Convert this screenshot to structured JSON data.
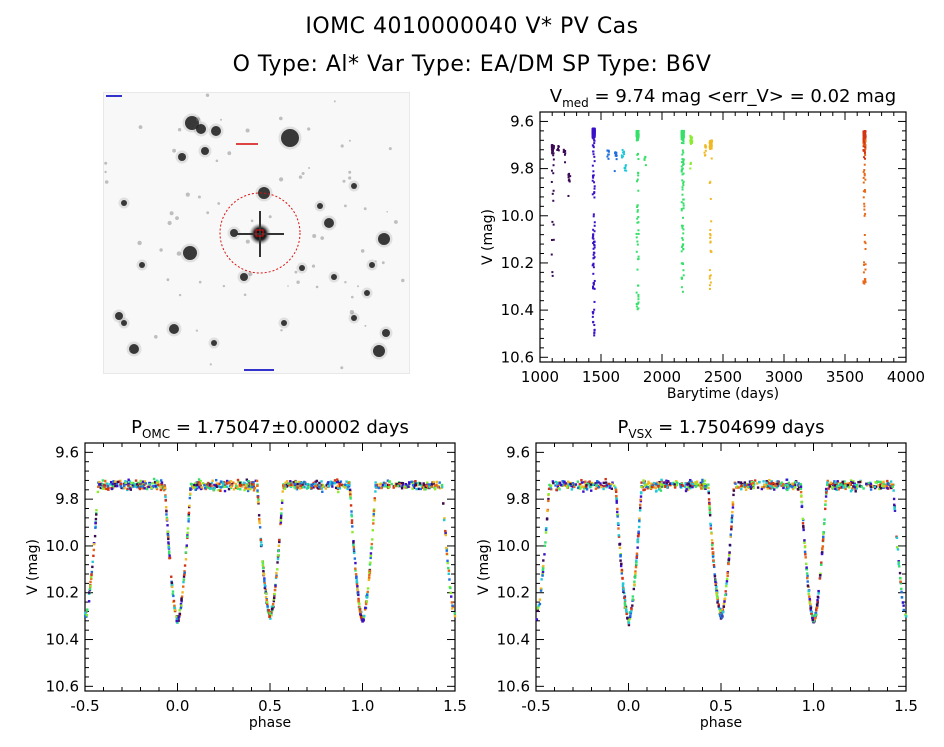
{
  "header": {
    "title_line1": "IOMC 4010000040    V* PV Cas",
    "title_line2": "O Type: Al*   Var Type: EA/DM   SP Type: B6V"
  },
  "chart_data": [
    {
      "id": "lightcurve",
      "type": "scatter",
      "title_main": "V",
      "title_sub": "med",
      "title_rest": " = 9.74 mag <err_V> = 0.02 mag",
      "xlabel": "Barytime (days)",
      "ylabel": "V (mag)",
      "xlim": [
        1000,
        4000
      ],
      "ylim": [
        10.62,
        9.56
      ],
      "xticks": [
        "1000",
        "1500",
        "2000",
        "2500",
        "3000",
        "3500",
        "4000"
      ],
      "yticks": [
        "9.6",
        "9.8",
        "10.0",
        "10.2",
        "10.4",
        "10.6"
      ],
      "series_colors": [
        "#3a0a55",
        "#3a10c8",
        "#1e6ee0",
        "#20c8d8",
        "#36e06a",
        "#8aec2c",
        "#f2b824",
        "#e86818",
        "#d23414"
      ]
    },
    {
      "id": "phase-omc",
      "type": "scatter",
      "title_main": "P",
      "title_sub": "OMC",
      "title_rest": " = 1.75047±0.00002 days",
      "xlabel": "phase",
      "ylabel": "V (mag)",
      "xlim": [
        -0.5,
        1.5
      ],
      "ylim": [
        10.62,
        9.56
      ],
      "xticks": [
        "-0.5",
        "0.0",
        "0.5",
        "1.0",
        "1.5"
      ],
      "yticks": [
        "9.6",
        "9.8",
        "10.0",
        "10.2",
        "10.4",
        "10.6"
      ],
      "baseline_mag": 9.74,
      "primary_depth": 10.32,
      "secondary_depth": 10.3
    },
    {
      "id": "phase-vsx",
      "type": "scatter",
      "title_main": "P",
      "title_sub": "VSX",
      "title_rest": " = 1.7504699 days",
      "xlabel": "phase",
      "ylabel": "V (mag)",
      "xlim": [
        -0.5,
        1.5
      ],
      "ylim": [
        10.62,
        9.56
      ],
      "xticks": [
        "-0.5",
        "0.0",
        "0.5",
        "1.0",
        "1.5"
      ],
      "yticks": [
        "9.6",
        "9.8",
        "10.0",
        "10.2",
        "10.4",
        "10.6"
      ],
      "baseline_mag": 9.74,
      "primary_depth": 10.32,
      "secondary_depth": 10.3
    }
  ],
  "finder": {
    "target_color": "#dd1111"
  }
}
